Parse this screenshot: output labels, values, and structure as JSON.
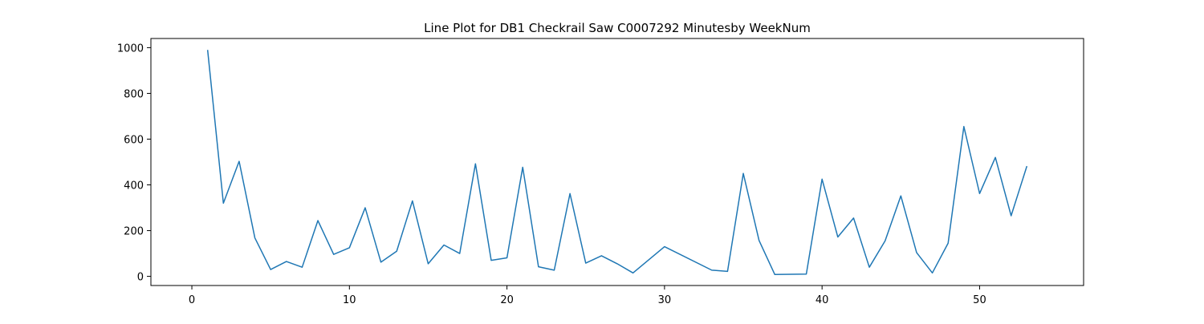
{
  "chart_data": {
    "type": "line",
    "title": "Line Plot for DB1 Checkrail Saw C0007292 Minutesby WeekNum",
    "xlabel": "",
    "ylabel": "",
    "xlim": [
      -2.6,
      56.6
    ],
    "ylim": [
      -40,
      1040
    ],
    "x_ticks": [
      0,
      10,
      20,
      30,
      40,
      50
    ],
    "y_ticks": [
      0,
      200,
      400,
      600,
      800,
      1000
    ],
    "grid": false,
    "legend": "none",
    "line_color": "#1f77b4",
    "x": [
      1,
      2,
      3,
      4,
      5,
      6,
      7,
      8,
      9,
      10,
      11,
      12,
      13,
      14,
      15,
      16,
      17,
      18,
      19,
      20,
      21,
      22,
      23,
      24,
      25,
      26,
      27,
      28,
      30,
      33,
      34,
      35,
      36,
      37,
      39,
      40,
      41,
      42,
      43,
      44,
      45,
      46,
      47,
      48,
      49,
      50,
      51,
      52,
      53
    ],
    "values": [
      990,
      320,
      503,
      168,
      30,
      65,
      40,
      244,
      96,
      125,
      300,
      62,
      110,
      330,
      55,
      137,
      100,
      492,
      70,
      81,
      477,
      42,
      27,
      362,
      58,
      90,
      55,
      15,
      130,
      27,
      22,
      450,
      157,
      8,
      10,
      425,
      172,
      255,
      40,
      155,
      352,
      104,
      15,
      145,
      655,
      362,
      520,
      265,
      482
    ]
  }
}
